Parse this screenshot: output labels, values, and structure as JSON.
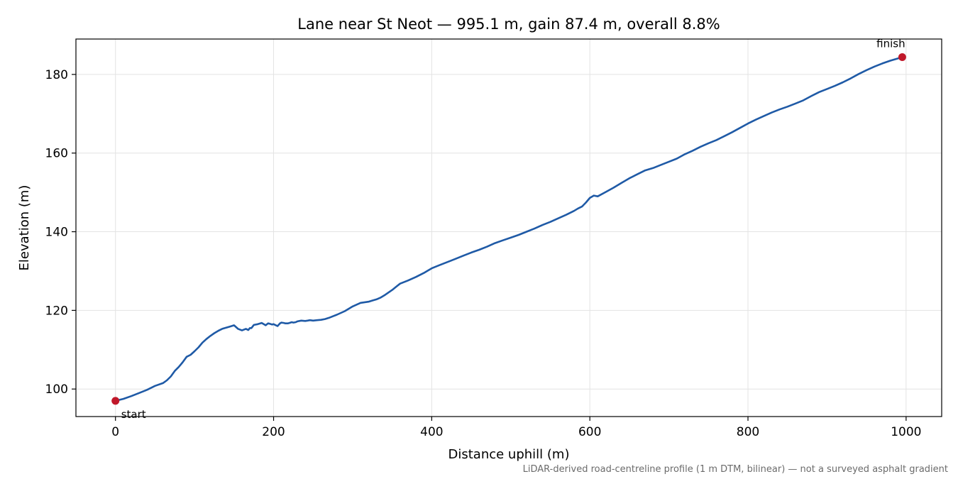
{
  "chart_data": {
    "type": "line",
    "title": "Lane near St Neot — 995.1 m, gain 87.4 m, overall 8.8%",
    "xlabel": "Distance uphill (m)",
    "ylabel": "Elevation (m)",
    "xlim": [
      -50,
      1045
    ],
    "ylim": [
      93,
      189
    ],
    "xticks": [
      0,
      200,
      400,
      600,
      800,
      1000
    ],
    "yticks": [
      100,
      120,
      140,
      160,
      180
    ],
    "grid": true,
    "line_color": "#1f5aa6",
    "marker_color": "#c0182a",
    "series": [
      {
        "x": [
          0,
          10,
          20,
          30,
          40,
          50,
          60,
          65,
          70,
          75,
          80,
          85,
          90,
          95,
          100,
          105,
          110,
          115,
          120,
          125,
          130,
          135,
          140,
          145,
          150,
          155,
          160,
          165,
          168,
          170,
          172,
          175,
          180,
          185,
          190,
          193,
          195,
          198,
          200,
          203,
          205,
          208,
          210,
          213,
          215,
          218,
          220,
          223,
          225,
          228,
          230,
          235,
          240,
          243,
          246,
          250,
          255,
          260,
          265,
          270,
          275,
          280,
          290,
          300,
          310,
          320,
          325,
          330,
          335,
          340,
          345,
          350,
          355,
          360,
          370,
          380,
          390,
          400,
          410,
          420,
          430,
          440,
          450,
          460,
          470,
          480,
          490,
          500,
          510,
          520,
          530,
          540,
          550,
          560,
          570,
          580,
          585,
          590,
          595,
          600,
          605,
          610,
          620,
          630,
          640,
          650,
          660,
          670,
          680,
          690,
          700,
          710,
          720,
          730,
          740,
          750,
          760,
          770,
          780,
          790,
          800,
          810,
          820,
          830,
          840,
          850,
          860,
          870,
          880,
          890,
          900,
          910,
          920,
          930,
          940,
          950,
          960,
          970,
          980,
          990,
          995.1
        ],
        "y": [
          97.0,
          97.5,
          98.2,
          99.0,
          99.8,
          100.8,
          101.5,
          102.2,
          103.2,
          104.6,
          105.6,
          106.8,
          108.2,
          108.7,
          109.6,
          110.6,
          111.8,
          112.7,
          113.5,
          114.2,
          114.8,
          115.3,
          115.6,
          115.9,
          116.2,
          115.3,
          114.9,
          115.3,
          115.0,
          115.5,
          115.5,
          116.3,
          116.5,
          116.8,
          116.2,
          116.7,
          116.6,
          116.4,
          116.5,
          116.2,
          116.0,
          116.7,
          116.9,
          116.8,
          116.7,
          116.7,
          116.8,
          117.0,
          116.9,
          117.0,
          117.2,
          117.4,
          117.3,
          117.4,
          117.5,
          117.4,
          117.5,
          117.6,
          117.8,
          118.1,
          118.5,
          118.9,
          119.8,
          121.0,
          121.9,
          122.2,
          122.5,
          122.8,
          123.2,
          123.8,
          124.5,
          125.2,
          126.0,
          126.8,
          127.6,
          128.5,
          129.5,
          130.7,
          131.5,
          132.3,
          133.1,
          133.9,
          134.7,
          135.4,
          136.2,
          137.1,
          137.8,
          138.5,
          139.2,
          140.0,
          140.8,
          141.7,
          142.5,
          143.4,
          144.3,
          145.3,
          145.9,
          146.4,
          147.4,
          148.6,
          149.2,
          149.0,
          150.1,
          151.2,
          152.4,
          153.6,
          154.6,
          155.6,
          156.2,
          157.0,
          157.8,
          158.6,
          159.7,
          160.6,
          161.6,
          162.5,
          163.3,
          164.3,
          165.3,
          166.4,
          167.5,
          168.5,
          169.4,
          170.3,
          171.1,
          171.8,
          172.6,
          173.4,
          174.5,
          175.5,
          176.3,
          177.1,
          178.0,
          179.0,
          180.1,
          181.1,
          182.0,
          182.8,
          183.5,
          184.1,
          184.4
        ]
      }
    ],
    "annotations": [
      {
        "text": "start",
        "x": 0,
        "y": 97.0
      },
      {
        "text": "finish",
        "x": 995.1,
        "y": 184.4
      }
    ],
    "footnote": "LiDAR-derived road-centreline profile (1 m DTM, bilinear) — not a surveyed asphalt gradient"
  }
}
